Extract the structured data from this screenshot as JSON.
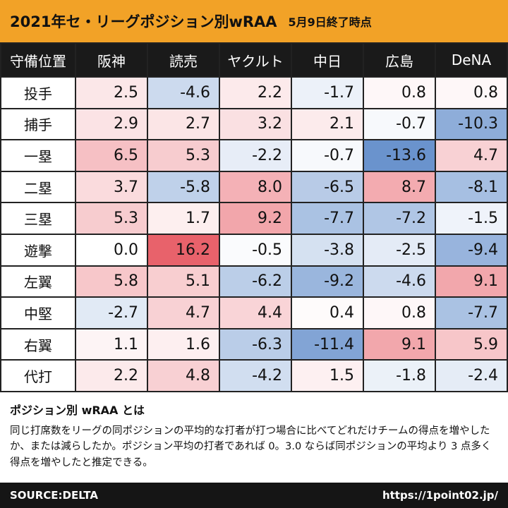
{
  "title": "2021年セ・リーグポジション別wRAA",
  "subtitle": "5月9日終了時点",
  "corner_label": "守備位置",
  "chart_data": {
    "type": "heatmap",
    "title": "2021年セ・リーグポジション別wRAA",
    "subtitle": "5月9日終了時点",
    "columns": [
      "阪神",
      "読売",
      "ヤクルト",
      "中日",
      "広島",
      "DeNA"
    ],
    "rows": [
      {
        "position": "投手",
        "values": [
          2.5,
          -4.6,
          2.2,
          -1.7,
          0.8,
          0.8
        ],
        "labels": [
          "2.5",
          "-4.6",
          "2.2",
          "-1.7",
          "0.8",
          "0.8"
        ]
      },
      {
        "position": "捕手",
        "values": [
          2.9,
          2.7,
          3.2,
          2.1,
          -0.7,
          -10.3
        ],
        "labels": [
          "2.9",
          "2.7",
          "3.2",
          "2.1",
          "-0.7",
          "-10.3"
        ]
      },
      {
        "position": "一塁",
        "values": [
          6.5,
          5.3,
          -2.2,
          -0.7,
          -13.6,
          4.7
        ],
        "labels": [
          "6.5",
          "5.3",
          "-2.2",
          "-0.7",
          "-13.6",
          "4.7"
        ]
      },
      {
        "position": "二塁",
        "values": [
          3.7,
          -5.8,
          8.0,
          -6.5,
          8.7,
          -8.1
        ],
        "labels": [
          "3.7",
          "-5.8",
          "8.0",
          "-6.5",
          "8.7",
          "-8.1"
        ]
      },
      {
        "position": "三塁",
        "values": [
          5.3,
          1.7,
          9.2,
          -7.7,
          -7.2,
          -1.5
        ],
        "labels": [
          "5.3",
          "1.7",
          "9.2",
          "-7.7",
          "-7.2",
          "-1.5"
        ]
      },
      {
        "position": "遊撃",
        "values": [
          0.0,
          16.2,
          -0.5,
          -3.8,
          -2.5,
          -9.4
        ],
        "labels": [
          "0.0",
          "16.2",
          "-0.5",
          "-3.8",
          "-2.5",
          "-9.4"
        ]
      },
      {
        "position": "左翼",
        "values": [
          5.8,
          5.1,
          -6.2,
          -9.2,
          -4.6,
          9.1
        ],
        "labels": [
          "5.8",
          "5.1",
          "-6.2",
          "-9.2",
          "-4.6",
          "9.1"
        ]
      },
      {
        "position": "中堅",
        "values": [
          -2.7,
          4.7,
          4.4,
          0.4,
          0.8,
          -7.7
        ],
        "labels": [
          "-2.7",
          "4.7",
          "4.4",
          "0.4",
          "0.8",
          "-7.7"
        ]
      },
      {
        "position": "右翼",
        "values": [
          1.1,
          1.6,
          -6.3,
          -11.4,
          9.1,
          5.9
        ],
        "labels": [
          "1.1",
          "1.6",
          "-6.3",
          "-11.4",
          "9.1",
          "5.9"
        ]
      },
      {
        "position": "代打",
        "values": [
          2.2,
          4.8,
          -4.2,
          1.5,
          -1.8,
          -2.4
        ],
        "labels": [
          "2.2",
          "4.8",
          "-4.2",
          "1.5",
          "-1.8",
          "-2.4"
        ]
      }
    ],
    "color_scale": {
      "positive": "#e8626b",
      "negative": "#4d7ec4",
      "neutral": "#ffffff",
      "max_abs": 16.2
    }
  },
  "note": {
    "heading": "ポジション別 wRAA とは",
    "body": "同じ打席数をリーグの同ポジションの平均的な打者が打つ場合に比べてどれだけチームの得点を増やしたか、または減らしたか。ポジション平均の打者であれば 0。3.0 ならば同ポジションの平均より 3 点多く得点を増やしたと推定できる。"
  },
  "footer": {
    "source": "SOURCE:DELTA",
    "url": "https://1point02.jp/"
  },
  "colors": {
    "title_bar": "#f2a227",
    "header_bg": "#1a1a1a",
    "footer_bg": "#151515"
  }
}
